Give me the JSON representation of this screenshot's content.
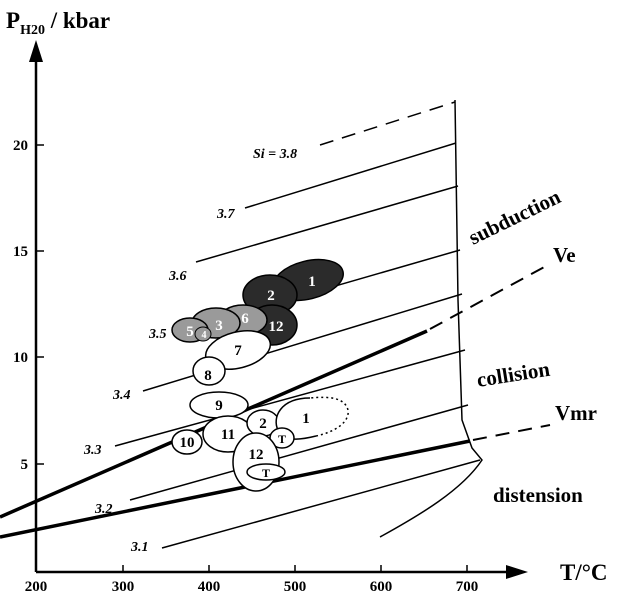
{
  "axes": {
    "y_title_main": "P",
    "y_title_sub": "H20",
    "y_title_unit": " / kbar",
    "x_title": "T/°C",
    "y_ticks": [
      "5",
      "10",
      "15",
      "20"
    ],
    "x_ticks": [
      "200",
      "300",
      "400",
      "500",
      "600",
      "700"
    ]
  },
  "isopleths": [
    "Si = 3.8",
    "3.7",
    "3.6",
    "3.5",
    "3.4",
    "3.3",
    "3.2",
    "3.1"
  ],
  "regions": {
    "subduction": "subduction",
    "collision": "collision",
    "distension": "distension"
  },
  "boundaries": {
    "ve": "Ve",
    "vmr": "Vmr"
  },
  "samples": {
    "high": [
      "1",
      "2",
      "6",
      "12",
      "3",
      "5",
      "4"
    ],
    "middle": [
      "7",
      "8",
      "9"
    ],
    "low": [
      "10",
      "11",
      "2",
      "1",
      "T",
      "12",
      "T"
    ]
  },
  "colors": {
    "dark_fill": "#2b2b2b",
    "grey_fill": "#9a9a9a",
    "line": "#000000"
  }
}
